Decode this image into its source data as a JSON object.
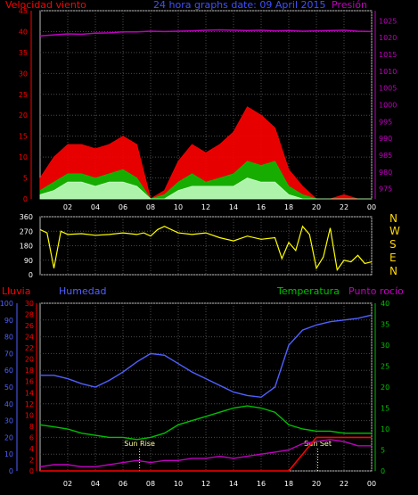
{
  "header": {
    "left_label": "Velocidad viento",
    "title": "24 hora graphs date: 09 April 2015",
    "right_label": "Presión"
  },
  "middle": {
    "left_label": "Lluvia",
    "humidity_label": "Humedad",
    "temp_label": "Temperatura",
    "dew_label": "Punto rocío"
  },
  "directions": [
    "N",
    "W",
    "S",
    "E",
    "N"
  ],
  "colors": {
    "wind_gust": "#ff0000",
    "wind_speed": "#00c000",
    "wind_avg": "#c8ffc8",
    "pressure": "#c000c0",
    "direction": "#ffff00",
    "humidity": "#5060ff",
    "temperature": "#00c000",
    "dew_point": "#c000c0",
    "rain": "#ff0000",
    "sun_text": "#ffff99",
    "axis_left_red": "#ff0000",
    "axis_right_magenta": "#c000c0",
    "axis_blue": "#5060ff",
    "axis_green": "#00c000"
  },
  "chart_data": [
    {
      "type": "area",
      "panel": "wind_pressure",
      "x_ticks": [
        "02",
        "04",
        "06",
        "08",
        "10",
        "12",
        "14",
        "16",
        "18",
        "20",
        "22",
        "00"
      ],
      "y_left": {
        "label": "Velocidad viento",
        "ylim": [
          0,
          45
        ],
        "ticks": [
          0,
          5,
          10,
          15,
          20,
          25,
          30,
          35,
          40,
          45
        ]
      },
      "y_right": {
        "label": "Presión",
        "ylim": [
          972,
          1028
        ],
        "ticks": [
          975,
          980,
          985,
          990,
          995,
          1000,
          1005,
          1010,
          1015,
          1020,
          1025
        ]
      },
      "grid": true,
      "x_hours": [
        0,
        1,
        2,
        3,
        4,
        5,
        6,
        7,
        8,
        9,
        10,
        11,
        12,
        13,
        14,
        15,
        16,
        17,
        18,
        19,
        20,
        21,
        22,
        23,
        24
      ],
      "series": [
        {
          "name": "gust",
          "values": [
            5,
            10,
            13,
            13,
            12,
            13,
            15,
            13,
            0,
            2,
            9,
            13,
            11,
            13,
            16,
            22,
            20,
            17,
            7,
            3,
            0,
            0,
            1,
            0,
            0
          ]
        },
        {
          "name": "speed",
          "values": [
            2,
            4,
            6,
            6,
            5,
            6,
            7,
            5,
            0,
            1,
            4,
            6,
            4,
            5,
            6,
            9,
            8,
            9,
            3,
            1,
            0,
            0,
            0,
            0,
            0
          ]
        },
        {
          "name": "average",
          "values": [
            1,
            2,
            4,
            4,
            3,
            4,
            4,
            3,
            0,
            0,
            2,
            3,
            3,
            3,
            3,
            5,
            4,
            4,
            1,
            0,
            0,
            0,
            0,
            0,
            0
          ]
        },
        {
          "name": "pressure",
          "values": [
            1020.5,
            1020.8,
            1021.1,
            1021.0,
            1021.3,
            1021.4,
            1021.7,
            1021.7,
            1021.9,
            1021.8,
            1021.9,
            1022.0,
            1022.2,
            1022.3,
            1022.2,
            1022.1,
            1022.2,
            1022.0,
            1022.1,
            1021.9,
            1022.0,
            1022.1,
            1022.2,
            1021.9,
            1021.8
          ]
        }
      ]
    },
    {
      "type": "line",
      "panel": "direction",
      "x_ticks": [
        "02",
        "04",
        "06",
        "08",
        "10",
        "12",
        "14",
        "16",
        "18",
        "20",
        "22",
        "00"
      ],
      "y_left": {
        "ylim": [
          0,
          360
        ],
        "ticks": [
          0,
          90,
          180,
          270,
          360
        ]
      },
      "grid": true,
      "x_hours": [
        0,
        0.5,
        1,
        1.5,
        2,
        3,
        4,
        5,
        6,
        7,
        7.5,
        8,
        8.5,
        9,
        10,
        11,
        12,
        13,
        14,
        15,
        16,
        17,
        17.5,
        18,
        18.5,
        19,
        19.5,
        20,
        20.5,
        21,
        21.5,
        22,
        22.5,
        23,
        23.5,
        24
      ],
      "series": [
        {
          "name": "direction",
          "values": [
            280,
            260,
            40,
            270,
            250,
            255,
            245,
            250,
            260,
            250,
            260,
            240,
            280,
            300,
            260,
            250,
            260,
            230,
            210,
            240,
            220,
            230,
            100,
            200,
            150,
            300,
            250,
            40,
            110,
            290,
            30,
            90,
            80,
            120,
            70,
            80
          ]
        }
      ]
    },
    {
      "type": "line",
      "panel": "humidity_temperature",
      "x_ticks": [
        "02",
        "04",
        "06",
        "08",
        "10",
        "12",
        "14",
        "16",
        "18",
        "20",
        "22",
        "00"
      ],
      "y_rain": {
        "label": "Lluvia",
        "ylim": [
          0,
          30
        ],
        "ticks": [
          0,
          2,
          4,
          6,
          8,
          10,
          12,
          14,
          16,
          18,
          20,
          22,
          24,
          26,
          28,
          30
        ]
      },
      "y_humidity": {
        "label": "Humedad",
        "ylim": [
          0,
          100
        ],
        "ticks": [
          0,
          10,
          20,
          30,
          40,
          50,
          60,
          70,
          80,
          90,
          100
        ]
      },
      "y_temp": {
        "label": "Temperatura",
        "ylim": [
          0,
          40
        ],
        "ticks": [
          0,
          5,
          10,
          15,
          20,
          25,
          30,
          35,
          40
        ]
      },
      "grid": true,
      "annotations": [
        {
          "label": "Sun Rise",
          "x_hour": 7.2
        },
        {
          "label": "Sun Set",
          "x_hour": 20.1
        }
      ],
      "x_hours": [
        0,
        1,
        2,
        3,
        4,
        5,
        6,
        7,
        8,
        9,
        10,
        11,
        12,
        13,
        14,
        15,
        16,
        17,
        18,
        19,
        20,
        21,
        22,
        23,
        24
      ],
      "series": [
        {
          "name": "humidity",
          "values": [
            57,
            57,
            55,
            52,
            50,
            54,
            59,
            65,
            70,
            69,
            64,
            59,
            55,
            51,
            47,
            45,
            44,
            50,
            75,
            84,
            87,
            89,
            90,
            91,
            93
          ]
        },
        {
          "name": "temperature",
          "values": [
            11,
            10.5,
            10,
            9,
            8.5,
            8,
            8,
            7.5,
            8,
            9,
            11,
            12,
            13,
            14,
            15,
            15.5,
            15,
            14,
            11,
            10,
            9.5,
            9.5,
            9,
            9,
            9
          ]
        },
        {
          "name": "dew_point",
          "values": [
            1,
            1.5,
            1.5,
            1,
            1,
            1.5,
            2,
            2.5,
            2,
            2.5,
            2.5,
            3,
            3,
            3.5,
            3,
            3.5,
            4,
            4.5,
            5,
            6.5,
            7,
            7.5,
            7,
            6,
            6
          ]
        },
        {
          "name": "rain",
          "values": [
            0,
            0,
            0,
            0,
            0,
            0,
            0,
            0,
            0,
            0,
            0,
            0,
            0,
            0,
            0,
            0,
            0,
            0,
            0,
            3,
            6,
            6,
            6,
            6,
            6
          ]
        }
      ]
    }
  ]
}
